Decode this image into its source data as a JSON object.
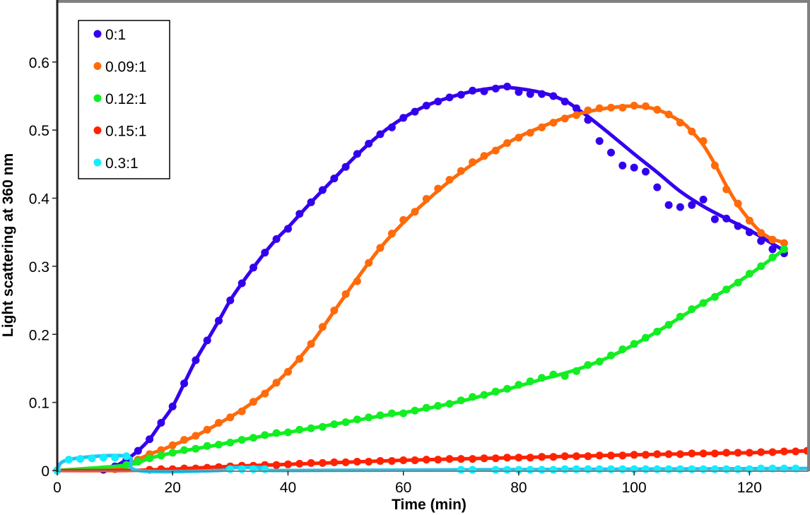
{
  "chart_data": {
    "type": "line",
    "title": "",
    "xlabel": "Time (min)",
    "ylabel": "Light scattering at 360 nm",
    "xlim": [
      0,
      130
    ],
    "ylim": [
      0,
      0.688
    ],
    "xticks": [
      0,
      20,
      40,
      60,
      80,
      100,
      120
    ],
    "xtick_labels": [
      "0",
      "20",
      "40",
      "60",
      "80",
      "100",
      "120"
    ],
    "yticks": [
      0,
      0.1,
      0.2,
      0.3,
      0.4,
      0.5,
      0.6
    ],
    "ytick_labels": [
      "0",
      "0.1",
      "0.2",
      "0.3",
      "0.4",
      "0.5",
      "0.6"
    ],
    "grid": false,
    "legend_position": "top-left",
    "series": [
      {
        "name": "0:1",
        "color": "#3300ee",
        "points": {
          "x": [
            0,
            8,
            10,
            12,
            14,
            16,
            18,
            20,
            22,
            24,
            26,
            28,
            30,
            32,
            34,
            36,
            38,
            40,
            42,
            44,
            46,
            48,
            50,
            52,
            54,
            56,
            58,
            60,
            62,
            64,
            66,
            68,
            70,
            72,
            74,
            76,
            78,
            80,
            82,
            84,
            86,
            88,
            90,
            92,
            94,
            96,
            98,
            100,
            102,
            104,
            106,
            108,
            110,
            112,
            114,
            116,
            118,
            120,
            122,
            124,
            126
          ],
          "y": [
            0,
            0.001,
            0.006,
            0.016,
            0.029,
            0.046,
            0.07,
            0.094,
            0.128,
            0.162,
            0.191,
            0.22,
            0.25,
            0.275,
            0.298,
            0.32,
            0.34,
            0.355,
            0.377,
            0.394,
            0.412,
            0.429,
            0.446,
            0.465,
            0.48,
            0.494,
            0.504,
            0.518,
            0.527,
            0.536,
            0.542,
            0.548,
            0.552,
            0.558,
            0.557,
            0.561,
            0.564,
            0.556,
            0.553,
            0.553,
            0.55,
            0.542,
            0.532,
            0.515,
            0.484,
            0.467,
            0.448,
            0.445,
            0.439,
            0.416,
            0.39,
            0.387,
            0.39,
            0.398,
            0.369,
            0.37,
            0.359,
            0.35,
            0.337,
            0.325,
            0.319
          ]
        },
        "fit": {
          "x": [
            0,
            8,
            10,
            12,
            14,
            16,
            18,
            20,
            22,
            24,
            26,
            28,
            30,
            32,
            34,
            36,
            38,
            40,
            44,
            48,
            52,
            56,
            60,
            64,
            68,
            72,
            76,
            78,
            84,
            88,
            90,
            92,
            96,
            100,
            104,
            108,
            112,
            116,
            120,
            124,
            126
          ],
          "y": [
            0,
            0.001,
            0.006,
            0.016,
            0.029,
            0.046,
            0.07,
            0.094,
            0.128,
            0.162,
            0.191,
            0.22,
            0.25,
            0.275,
            0.298,
            0.32,
            0.34,
            0.357,
            0.394,
            0.429,
            0.464,
            0.494,
            0.518,
            0.536,
            0.548,
            0.557,
            0.562,
            0.563,
            0.555,
            0.543,
            0.532,
            0.52,
            0.493,
            0.465,
            0.438,
            0.41,
            0.388,
            0.37,
            0.353,
            0.333,
            0.323
          ]
        }
      },
      {
        "name": "0.09:1",
        "color": "#ff6a0a",
        "points": {
          "x": [
            0,
            10,
            12,
            14,
            16,
            18,
            20,
            22,
            24,
            26,
            28,
            30,
            32,
            34,
            36,
            38,
            40,
            42,
            44,
            46,
            48,
            50,
            52,
            54,
            56,
            58,
            60,
            62,
            64,
            66,
            68,
            70,
            72,
            74,
            76,
            78,
            80,
            82,
            84,
            86,
            88,
            90,
            92,
            94,
            96,
            98,
            100,
            102,
            104,
            106,
            108,
            110,
            112,
            114,
            116,
            118,
            120,
            122,
            124,
            126
          ],
          "y": [
            0,
            0.002,
            0.008,
            0.016,
            0.024,
            0.03,
            0.037,
            0.045,
            0.051,
            0.06,
            0.07,
            0.078,
            0.087,
            0.101,
            0.113,
            0.129,
            0.145,
            0.164,
            0.186,
            0.211,
            0.235,
            0.259,
            0.278,
            0.305,
            0.327,
            0.348,
            0.368,
            0.38,
            0.399,
            0.414,
            0.427,
            0.44,
            0.453,
            0.462,
            0.47,
            0.481,
            0.489,
            0.496,
            0.504,
            0.511,
            0.517,
            0.522,
            0.529,
            0.532,
            0.533,
            0.533,
            0.536,
            0.535,
            0.53,
            0.523,
            0.511,
            0.498,
            0.484,
            0.448,
            0.413,
            0.392,
            0.367,
            0.349,
            0.339,
            0.334
          ]
        },
        "fit": {
          "x": [
            0,
            10,
            12,
            14,
            16,
            18,
            20,
            24,
            28,
            32,
            36,
            40,
            44,
            48,
            52,
            56,
            60,
            64,
            68,
            72,
            76,
            80,
            84,
            88,
            92,
            96,
            100,
            104,
            108,
            110,
            112,
            114,
            116,
            118,
            120,
            122,
            124,
            126
          ],
          "y": [
            0,
            0.002,
            0.008,
            0.016,
            0.024,
            0.03,
            0.037,
            0.051,
            0.069,
            0.089,
            0.114,
            0.146,
            0.186,
            0.234,
            0.282,
            0.327,
            0.364,
            0.396,
            0.425,
            0.45,
            0.471,
            0.49,
            0.505,
            0.518,
            0.527,
            0.533,
            0.535,
            0.53,
            0.513,
            0.498,
            0.478,
            0.45,
            0.418,
            0.39,
            0.368,
            0.35,
            0.34,
            0.335
          ]
        }
      },
      {
        "name": "0.12:1",
        "color": "#11ee22",
        "points": {
          "x": [
            0,
            12,
            14,
            16,
            18,
            20,
            22,
            24,
            26,
            28,
            30,
            32,
            34,
            36,
            38,
            40,
            42,
            44,
            46,
            48,
            50,
            52,
            54,
            56,
            58,
            60,
            62,
            64,
            66,
            68,
            70,
            72,
            74,
            76,
            78,
            80,
            82,
            84,
            86,
            88,
            90,
            92,
            94,
            96,
            98,
            100,
            102,
            104,
            106,
            108,
            110,
            112,
            114,
            116,
            118,
            120,
            122,
            124,
            126
          ],
          "y": [
            0,
            0.008,
            0.013,
            0.018,
            0.022,
            0.026,
            0.03,
            0.032,
            0.036,
            0.038,
            0.041,
            0.045,
            0.048,
            0.052,
            0.055,
            0.056,
            0.06,
            0.062,
            0.064,
            0.068,
            0.071,
            0.075,
            0.078,
            0.081,
            0.084,
            0.084,
            0.088,
            0.092,
            0.095,
            0.098,
            0.103,
            0.108,
            0.111,
            0.116,
            0.12,
            0.126,
            0.131,
            0.136,
            0.141,
            0.139,
            0.146,
            0.155,
            0.16,
            0.169,
            0.178,
            0.186,
            0.195,
            0.204,
            0.214,
            0.226,
            0.237,
            0.246,
            0.255,
            0.266,
            0.276,
            0.289,
            0.3,
            0.313,
            0.325
          ]
        },
        "fit": {
          "x": [
            0,
            12,
            16,
            20,
            24,
            28,
            32,
            36,
            40,
            44,
            48,
            52,
            56,
            60,
            64,
            68,
            72,
            76,
            80,
            84,
            88,
            92,
            96,
            100,
            104,
            108,
            112,
            116,
            120,
            124,
            126
          ],
          "y": [
            0,
            0.008,
            0.018,
            0.026,
            0.032,
            0.038,
            0.045,
            0.051,
            0.056,
            0.062,
            0.068,
            0.074,
            0.08,
            0.085,
            0.091,
            0.098,
            0.106,
            0.115,
            0.124,
            0.134,
            0.143,
            0.154,
            0.168,
            0.185,
            0.204,
            0.225,
            0.246,
            0.266,
            0.288,
            0.312,
            0.325
          ]
        }
      },
      {
        "name": "0.15:1",
        "color": "#ff2200",
        "points": {
          "x": [
            0,
            16,
            18,
            20,
            22,
            24,
            26,
            28,
            30,
            32,
            34,
            36,
            38,
            40,
            42,
            44,
            46,
            48,
            50,
            52,
            54,
            56,
            58,
            60,
            62,
            64,
            66,
            68,
            70,
            72,
            74,
            76,
            78,
            80,
            82,
            84,
            86,
            88,
            90,
            92,
            94,
            96,
            98,
            100,
            102,
            104,
            106,
            108,
            110,
            112,
            114,
            116,
            118,
            120,
            122,
            124,
            126,
            128,
            130
          ],
          "y": [
            0,
            0.001,
            0.002,
            0.002,
            0.003,
            0.003,
            0.004,
            0.005,
            0.006,
            0.007,
            0.007,
            0.008,
            0.008,
            0.009,
            0.01,
            0.011,
            0.011,
            0.012,
            0.012,
            0.013,
            0.013,
            0.014,
            0.014,
            0.015,
            0.015,
            0.016,
            0.016,
            0.017,
            0.017,
            0.017,
            0.018,
            0.018,
            0.019,
            0.019,
            0.019,
            0.02,
            0.02,
            0.021,
            0.021,
            0.021,
            0.022,
            0.022,
            0.022,
            0.023,
            0.023,
            0.024,
            0.024,
            0.024,
            0.025,
            0.025,
            0.025,
            0.026,
            0.026,
            0.026,
            0.027,
            0.027,
            0.028,
            0.028,
            0.029
          ]
        },
        "fit": {
          "x": [
            0,
            12,
            16,
            20,
            30,
            40,
            60,
            80,
            100,
            120,
            130
          ],
          "y": [
            0,
            0.0,
            0.001,
            0.002,
            0.006,
            0.009,
            0.015,
            0.019,
            0.023,
            0.026,
            0.029
          ]
        }
      },
      {
        "name": "0.3:1",
        "color": "#11eeff",
        "line_color": "#22c4ee",
        "points": {
          "x": [
            0,
            2,
            4,
            6,
            8,
            10,
            12,
            30,
            32,
            34,
            36,
            70,
            72,
            76,
            78,
            80,
            82,
            84,
            86,
            88,
            90,
            92,
            94,
            96,
            98,
            100,
            102,
            104,
            106,
            108,
            110,
            112,
            114,
            116,
            118,
            120,
            122,
            124,
            126,
            128
          ],
          "y": [
            0,
            0.016,
            0.017,
            0.018,
            0.019,
            0.019,
            0.021,
            0.002,
            0.002,
            0.002,
            0.002,
            0.001,
            0.001,
            0.001,
            0.001,
            0.001,
            0.001,
            0.001,
            0.001,
            0.002,
            0.002,
            0.002,
            0.002,
            0.002,
            0.002,
            0.002,
            0.002,
            0.002,
            0.002,
            0.002,
            0.002,
            0.002,
            0.002,
            0.002,
            0.002,
            0.002,
            0.003,
            0.003,
            0.003,
            0.003
          ]
        },
        "fit": {
          "x": [
            0,
            2,
            12,
            14,
            28,
            30,
            36,
            38,
            70,
            100,
            130
          ],
          "y": [
            0,
            0.016,
            0.021,
            0.0,
            0.0,
            0.004,
            0.004,
            0.0,
            0.001,
            0.002,
            0.003
          ]
        }
      }
    ]
  }
}
